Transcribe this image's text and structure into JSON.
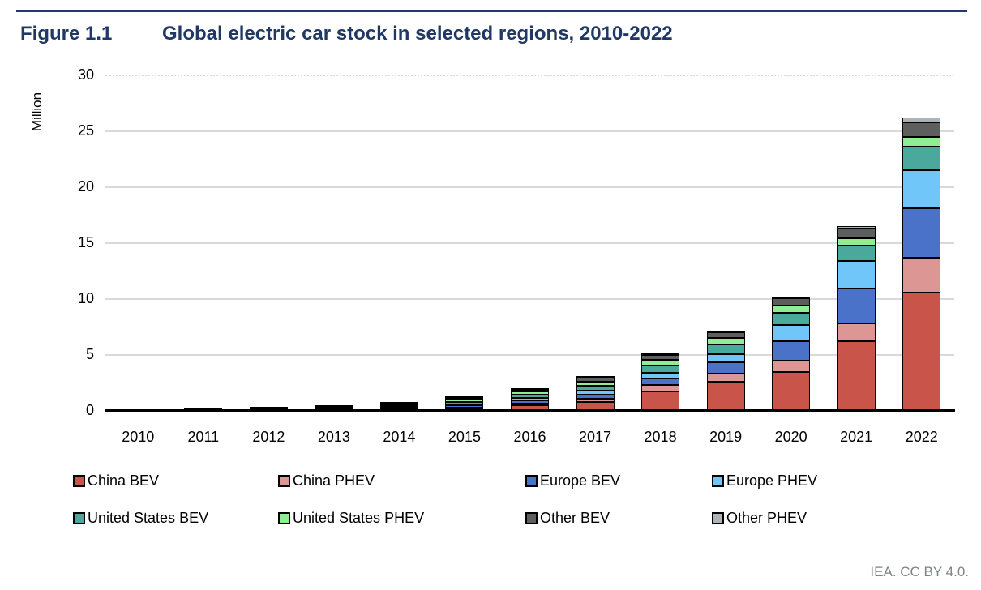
{
  "header": {
    "figure_label": "Figure 1.1",
    "title": "Global electric car stock in selected regions, 2010-2022"
  },
  "attribution": "IEA. CC BY 4.0.",
  "colors": {
    "accent": "#1F3864",
    "gridline": "#D9D9D9",
    "axis": "#000000",
    "attribution_text": "#7E8388"
  },
  "chart_data": {
    "type": "bar",
    "stacked": true,
    "title": "Global electric car stock in selected regions, 2010-2022",
    "xlabel": "",
    "ylabel": "Million",
    "ylim": [
      0,
      30
    ],
    "yticks": [
      0,
      5,
      10,
      15,
      20,
      25,
      30
    ],
    "grid": true,
    "legend_position": "bottom",
    "categories": [
      "2010",
      "2011",
      "2012",
      "2013",
      "2014",
      "2015",
      "2016",
      "2017",
      "2018",
      "2019",
      "2020",
      "2021",
      "2022"
    ],
    "series": [
      {
        "name": "China BEV",
        "color": "#C9544A",
        "values": [
          0.01,
          0.01,
          0.02,
          0.05,
          0.1,
          0.23,
          0.49,
          0.82,
          1.76,
          2.58,
          3.5,
          6.2,
          10.6
        ]
      },
      {
        "name": "China PHEV",
        "color": "#DC9795",
        "values": [
          0,
          0,
          0.01,
          0.01,
          0.02,
          0.08,
          0.16,
          0.28,
          0.54,
          0.77,
          1.0,
          1.6,
          3.1
        ]
      },
      {
        "name": "Europe BEV",
        "color": "#4A72C8",
        "values": [
          0,
          0.01,
          0.03,
          0.07,
          0.12,
          0.18,
          0.26,
          0.38,
          0.58,
          0.97,
          1.75,
          3.15,
          4.4
        ]
      },
      {
        "name": "Europe PHEV",
        "color": "#70C6F8",
        "values": [
          0,
          0,
          0.01,
          0.03,
          0.07,
          0.12,
          0.26,
          0.35,
          0.55,
          0.77,
          1.45,
          2.45,
          3.4
        ]
      },
      {
        "name": "United States BEV",
        "color": "#4BA89D",
        "values": [
          0,
          0.02,
          0.05,
          0.1,
          0.15,
          0.21,
          0.3,
          0.44,
          0.64,
          0.88,
          1.1,
          1.35,
          2.1
        ]
      },
      {
        "name": "United States PHEV",
        "color": "#90EE90",
        "values": [
          0,
          0.01,
          0.04,
          0.07,
          0.13,
          0.19,
          0.26,
          0.36,
          0.47,
          0.57,
          0.65,
          0.7,
          0.9
        ]
      },
      {
        "name": "Other BEV",
        "color": "#5E5E5E",
        "values": [
          0.01,
          0.01,
          0.03,
          0.06,
          0.09,
          0.13,
          0.18,
          0.37,
          0.46,
          0.52,
          0.6,
          0.85,
          1.3
        ]
      },
      {
        "name": "Other PHEV",
        "color": "#AEB3B8",
        "values": [
          0,
          0,
          0.01,
          0.01,
          0.02,
          0.03,
          0.05,
          0.1,
          0.11,
          0.14,
          0.15,
          0.25,
          0.4
        ]
      }
    ],
    "totals": [
      0.02,
      0.06,
      0.2,
      0.4,
      0.7,
      1.17,
      1.96,
      3.1,
      5.11,
      7.2,
      10.2,
      16.55,
      26.2
    ]
  }
}
